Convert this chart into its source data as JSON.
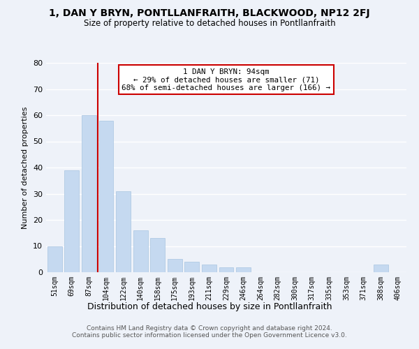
{
  "title": "1, DAN Y BRYN, PONTLLANFRAITH, BLACKWOOD, NP12 2FJ",
  "subtitle": "Size of property relative to detached houses in Pontllanfraith",
  "xlabel": "Distribution of detached houses by size in Pontllanfraith",
  "ylabel": "Number of detached properties",
  "bin_labels": [
    "51sqm",
    "69sqm",
    "87sqm",
    "104sqm",
    "122sqm",
    "140sqm",
    "158sqm",
    "175sqm",
    "193sqm",
    "211sqm",
    "229sqm",
    "246sqm",
    "264sqm",
    "282sqm",
    "300sqm",
    "317sqm",
    "335sqm",
    "353sqm",
    "371sqm",
    "388sqm",
    "406sqm"
  ],
  "bar_values": [
    10,
    39,
    60,
    58,
    31,
    16,
    13,
    5,
    4,
    3,
    2,
    2,
    0,
    0,
    0,
    0,
    0,
    0,
    0,
    3,
    0
  ],
  "bar_color": "#c5d9f0",
  "red_line_index": 2,
  "annotation_line1": "1 DAN Y BRYN: 94sqm",
  "annotation_line2": "← 29% of detached houses are smaller (71)",
  "annotation_line3": "68% of semi-detached houses are larger (166) →",
  "annotation_box_color": "#ffffff",
  "annotation_box_edge": "#cc0000",
  "ylim": [
    0,
    80
  ],
  "yticks": [
    0,
    10,
    20,
    30,
    40,
    50,
    60,
    70,
    80
  ],
  "footer_line1": "Contains HM Land Registry data © Crown copyright and database right 2024.",
  "footer_line2": "Contains public sector information licensed under the Open Government Licence v3.0.",
  "bg_color": "#eef2f9",
  "grid_color": "#ffffff"
}
